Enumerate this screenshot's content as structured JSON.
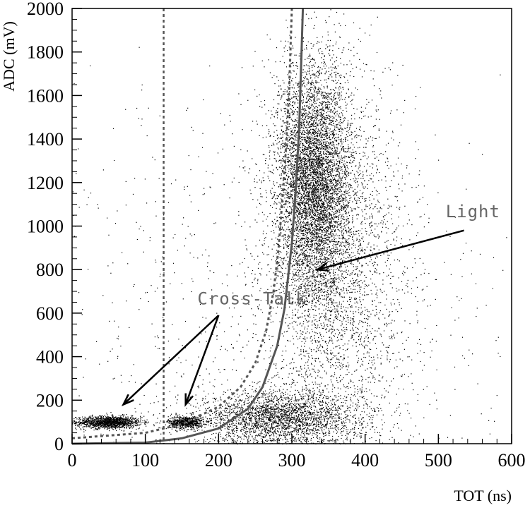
{
  "chart_data": {
    "type": "scatter",
    "xlabel": "TOT (ns)",
    "ylabel": "ADC (mV)",
    "xlim": [
      0,
      600
    ],
    "ylim": [
      0,
      2000
    ],
    "xticks": [
      "0",
      "100",
      "200",
      "300",
      "400",
      "500",
      "600"
    ],
    "yticks": [
      "0",
      "200",
      "400",
      "600",
      "800",
      "1000",
      "1200",
      "1400",
      "1600",
      "1800",
      "2000"
    ],
    "grid": false,
    "point_color": "#000000",
    "curve_color": "#555555",
    "scatter_clusters": [
      {
        "x_center": 50,
        "y_center": 100,
        "x_spread": 22,
        "y_spread": 14,
        "count": 1400
      },
      {
        "x_center": 155,
        "y_center": 100,
        "x_spread": 12,
        "y_spread": 14,
        "count": 700
      },
      {
        "x_center": 280,
        "y_center": 120,
        "x_spread": 55,
        "y_spread": 60,
        "count": 2600
      },
      {
        "x_center": 330,
        "y_center": 1200,
        "x_spread": 25,
        "y_spread": 280,
        "count": 6000
      },
      {
        "x_center": 360,
        "y_center": 800,
        "x_spread": 50,
        "y_spread": 450,
        "count": 3000
      },
      {
        "x_center": 250,
        "y_center": 600,
        "x_spread": 180,
        "y_spread": 500,
        "count": 900
      }
    ],
    "solid_curve": [
      [
        0,
        0
      ],
      [
        100,
        5
      ],
      [
        150,
        25
      ],
      [
        200,
        70
      ],
      [
        240,
        160
      ],
      [
        260,
        260
      ],
      [
        280,
        450
      ],
      [
        290,
        620
      ],
      [
        300,
        920
      ],
      [
        305,
        1150
      ],
      [
        310,
        1450
      ],
      [
        315,
        2000
      ]
    ],
    "dashed_curve": [
      [
        0,
        25
      ],
      [
        100,
        50
      ],
      [
        150,
        90
      ],
      [
        200,
        170
      ],
      [
        230,
        260
      ],
      [
        250,
        370
      ],
      [
        265,
        520
      ],
      [
        275,
        700
      ],
      [
        282,
        900
      ],
      [
        290,
        1250
      ],
      [
        296,
        1600
      ],
      [
        300,
        2000
      ]
    ],
    "vertical_dashed_line_x": 125,
    "annotations": [
      {
        "text": "Cross-Talk",
        "x": 200,
        "y": 640
      },
      {
        "text": "Light",
        "x": 510,
        "y": 1040
      }
    ]
  }
}
